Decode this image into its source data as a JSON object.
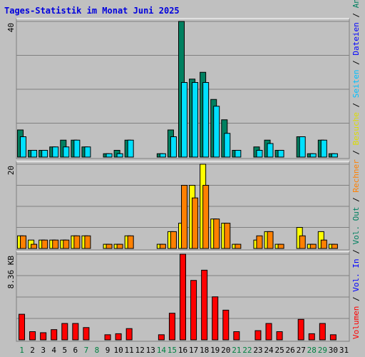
{
  "chart_data": {
    "type": "bar",
    "title": "Tages-Statistik im Monat Juni 2025",
    "categories": [
      "1",
      "2",
      "3",
      "4",
      "5",
      "6",
      "7",
      "8",
      "9",
      "10",
      "11",
      "12",
      "13",
      "14",
      "15",
      "16",
      "17",
      "18",
      "19",
      "20",
      "21",
      "22",
      "23",
      "24",
      "25",
      "26",
      "27",
      "28",
      "29",
      "30",
      "31"
    ],
    "weekend_days": [
      1,
      7,
      8,
      14,
      15,
      21,
      22,
      28,
      29
    ],
    "panels": [
      {
        "ylabel": "40",
        "ymax": 40,
        "series": [
          {
            "name": "Anfragen",
            "color": "#008060",
            "values": [
              8,
              2,
              2,
              3,
              5,
              5,
              3,
              0,
              1,
              2,
              5,
              0,
              0,
              1,
              8,
              40,
              23,
              25,
              17,
              11,
              2,
              0,
              3,
              5,
              2,
              0,
              6,
              1,
              5,
              1,
              0
            ]
          },
          {
            "name": "Dateien",
            "color": "#00E0FF",
            "values": [
              6,
              2,
              2,
              3,
              3,
              5,
              3,
              0,
              1,
              1,
              5,
              0,
              0,
              1,
              6,
              22,
              22,
              22,
              15,
              7,
              2,
              0,
              2,
              4,
              2,
              0,
              6,
              1,
              5,
              1,
              0
            ]
          }
        ]
      },
      {
        "ylabel": "20",
        "ymax": 20,
        "series": [
          {
            "name": "Besuche",
            "color": "#FFFF00",
            "values": [
              3,
              2,
              2,
              2,
              2,
              3,
              3,
              0,
              1,
              1,
              3,
              0,
              0,
              1,
              4,
              6,
              15,
              20,
              7,
              6,
              1,
              0,
              2,
              4,
              1,
              0,
              5,
              1,
              4,
              1,
              0
            ]
          },
          {
            "name": "Rechner",
            "color": "#FF8000",
            "values": [
              3,
              1,
              2,
              2,
              2,
              3,
              3,
              0,
              1,
              1,
              3,
              0,
              0,
              1,
              4,
              15,
              12,
              15,
              7,
              6,
              1,
              0,
              3,
              4,
              1,
              0,
              3,
              1,
              2,
              1,
              0
            ]
          }
        ]
      },
      {
        "ylabel": "8.36 KB",
        "ymax": 8.36,
        "series": [
          {
            "name": "Volumen",
            "color": "#FF0000",
            "values": [
              2.5,
              0.8,
              0.7,
              1.0,
              1.6,
              1.6,
              1.2,
              0,
              0.5,
              0.6,
              1.1,
              0,
              0,
              0.5,
              2.6,
              8.36,
              5.8,
              6.8,
              4.2,
              2.9,
              0.8,
              0,
              0.9,
              1.6,
              0.8,
              0,
              2.0,
              0.6,
              1.6,
              0.5,
              0
            ]
          }
        ]
      }
    ],
    "side_legend": [
      {
        "text": "Volumen",
        "color": "#FF0000"
      },
      {
        "text": " / ",
        "color": "#000000"
      },
      {
        "text": "Vol. In",
        "color": "#0000FF"
      },
      {
        "text": " / ",
        "color": "#000000"
      },
      {
        "text": "Vol. Out",
        "color": "#008060"
      },
      {
        "text": " / ",
        "color": "#000000"
      },
      {
        "text": "Rechner",
        "color": "#FF8000"
      },
      {
        "text": " / ",
        "color": "#000000"
      },
      {
        "text": "Besuche",
        "color": "#DDDD00"
      },
      {
        "text": " / ",
        "color": "#000000"
      },
      {
        "text": "Seiten",
        "color": "#00C0FF"
      },
      {
        "text": " / ",
        "color": "#000000"
      },
      {
        "text": "Dateien",
        "color": "#0000FF"
      },
      {
        "text": " / ",
        "color": "#000000"
      },
      {
        "text": "Anfragen",
        "color": "#008060"
      }
    ],
    "colors": {
      "background": "#C0C0C0",
      "title": "#0000DD",
      "weekday_label": "#000000",
      "weekend_label": "#008040",
      "grid": "#808080"
    }
  }
}
